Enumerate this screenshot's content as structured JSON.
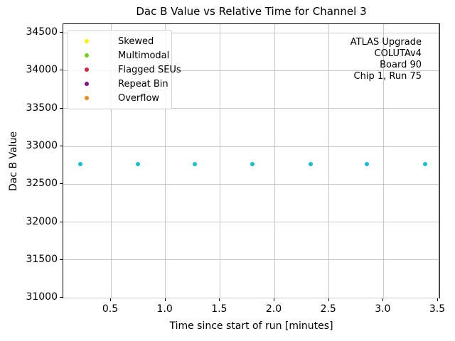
{
  "title": "Dac B Value vs Relative Time for Channel 3",
  "chart_data": {
    "type": "scatter",
    "title": "Dac B Value vs Relative Time for Channel 3",
    "xlabel": "Time since start of run [minutes]",
    "ylabel": "Dac B Value",
    "xlim": [
      0.063,
      3.526
    ],
    "ylim": [
      30984,
      34613
    ],
    "grid": true,
    "x_ticks": [
      0.5,
      1.0,
      1.5,
      2.0,
      2.5,
      3.0,
      3.5
    ],
    "x_tick_labels": [
      "0.5",
      "1.0",
      "1.5",
      "2.0",
      "2.5",
      "3.0",
      "3.5"
    ],
    "y_ticks": [
      31000,
      31500,
      32000,
      32500,
      33000,
      33500,
      34000,
      34500
    ],
    "y_tick_labels": [
      "31000",
      "31500",
      "32000",
      "32500",
      "33000",
      "33500",
      "34000",
      "34500"
    ],
    "series": [
      {
        "name": "channel-3-data",
        "color": "#17becf",
        "x": [
          0.22,
          0.75,
          1.27,
          1.8,
          2.33,
          2.85,
          3.38
        ],
        "y": [
          32770,
          32770,
          32770,
          32770,
          32770,
          32770,
          32770
        ]
      }
    ],
    "legend": {
      "position": "upper left",
      "entries": [
        {
          "label": "Skewed",
          "color": "#f6f303"
        },
        {
          "label": "Multimodal",
          "color": "#6fd412"
        },
        {
          "label": "Flagged SEUs",
          "color": "#d8213c"
        },
        {
          "label": "Repeat Bin",
          "color": "#850c8c"
        },
        {
          "label": "Overflow",
          "color": "#f6871d"
        }
      ]
    },
    "annotation": {
      "lines": [
        "ATLAS Upgrade",
        "COLUTAv4",
        "Board 90",
        "Chip 1, Run 75"
      ]
    }
  }
}
